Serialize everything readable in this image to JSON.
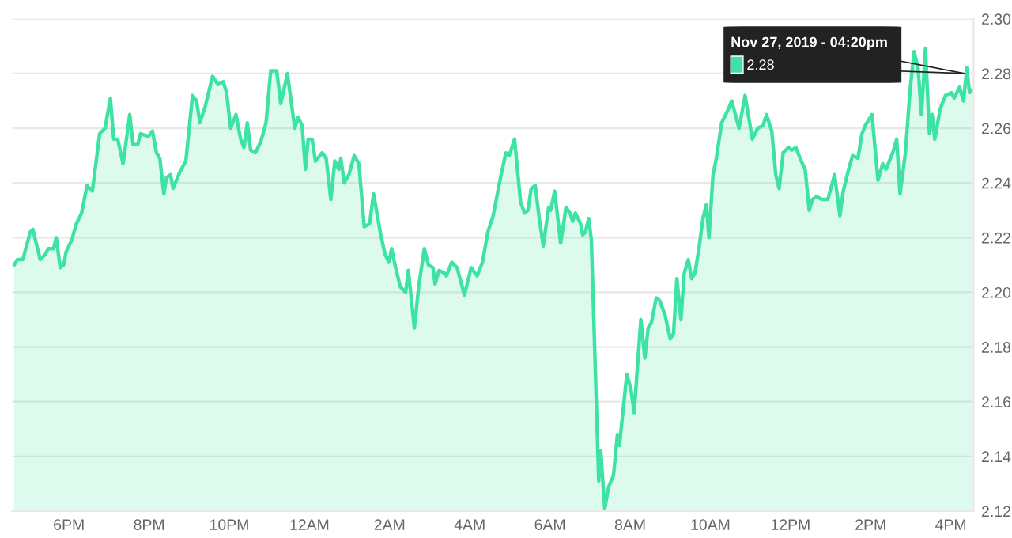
{
  "chart_data": {
    "type": "area",
    "x": [
      "2019-11-26T16:38",
      "2019-11-26T16:43",
      "2019-11-26T16:51",
      "2019-11-26T17:02",
      "2019-11-26T17:06",
      "2019-11-26T17:17",
      "2019-11-26T17:25",
      "2019-11-26T17:29",
      "2019-11-26T17:37",
      "2019-11-26T17:41",
      "2019-11-26T17:47",
      "2019-11-26T17:52",
      "2019-11-26T17:56",
      "2019-11-26T18:04",
      "2019-11-26T18:11",
      "2019-11-26T18:19",
      "2019-11-26T18:27",
      "2019-11-26T18:35",
      "2019-11-26T18:46",
      "2019-11-26T18:54",
      "2019-11-26T19:02",
      "2019-11-26T19:07",
      "2019-11-26T19:13",
      "2019-11-26T19:21",
      "2019-11-26T19:31",
      "2019-11-26T19:36",
      "2019-11-26T19:43",
      "2019-11-26T19:47",
      "2019-11-26T19:59",
      "2019-11-26T20:05",
      "2019-11-26T20:11",
      "2019-11-26T20:16",
      "2019-11-26T20:22",
      "2019-11-26T20:26",
      "2019-11-26T20:32",
      "2019-11-26T20:36",
      "2019-11-26T20:46",
      "2019-11-26T20:55",
      "2019-11-26T21:05",
      "2019-11-26T21:11",
      "2019-11-26T21:16",
      "2019-11-26T21:24",
      "2019-11-26T21:35",
      "2019-11-26T21:43",
      "2019-11-26T21:51",
      "2019-11-26T21:56",
      "2019-11-26T22:02",
      "2019-11-26T22:10",
      "2019-11-26T22:17",
      "2019-11-26T22:22",
      "2019-11-26T22:27",
      "2019-11-26T22:32",
      "2019-11-26T22:39",
      "2019-11-26T22:47",
      "2019-11-26T22:55",
      "2019-11-26T23:02",
      "2019-11-26T23:11",
      "2019-11-26T23:17",
      "2019-11-26T23:27",
      "2019-11-26T23:38",
      "2019-11-26T23:43",
      "2019-11-26T23:49",
      "2019-11-26T23:54",
      "2019-11-26T23:58",
      "2019-11-27T00:04",
      "2019-11-27T00:09",
      "2019-11-27T00:19",
      "2019-11-27T00:25",
      "2019-11-27T00:32",
      "2019-11-27T00:38",
      "2019-11-27T00:44",
      "2019-11-27T00:47",
      "2019-11-27T00:52",
      "2019-11-27T00:59",
      "2019-11-27T01:07",
      "2019-11-27T01:14",
      "2019-11-27T01:22",
      "2019-11-27T01:30",
      "2019-11-27T01:36",
      "2019-11-27T01:46",
      "2019-11-27T01:53",
      "2019-11-27T01:59",
      "2019-11-27T02:03",
      "2019-11-27T02:08",
      "2019-11-27T02:16",
      "2019-11-27T02:24",
      "2019-11-27T02:28",
      "2019-11-27T02:37",
      "2019-11-27T02:44",
      "2019-11-27T02:52",
      "2019-11-27T02:58",
      "2019-11-27T03:05",
      "2019-11-27T03:08",
      "2019-11-27T03:14",
      "2019-11-27T03:22",
      "2019-11-27T03:25",
      "2019-11-27T03:33",
      "2019-11-27T03:41",
      "2019-11-27T03:52",
      "2019-11-27T04:02",
      "2019-11-27T04:11",
      "2019-11-27T04:19",
      "2019-11-27T04:27",
      "2019-11-27T04:35",
      "2019-11-27T04:46",
      "2019-11-27T04:54",
      "2019-11-27T04:59",
      "2019-11-27T05:07",
      "2019-11-27T05:16",
      "2019-11-27T05:22",
      "2019-11-27T05:27",
      "2019-11-27T05:32",
      "2019-11-27T05:38",
      "2019-11-27T05:44",
      "2019-11-27T05:50",
      "2019-11-27T05:58",
      "2019-11-27T06:01",
      "2019-11-27T06:07",
      "2019-11-27T06:16",
      "2019-11-27T06:24",
      "2019-11-27T06:30",
      "2019-11-27T06:34",
      "2019-11-27T06:38",
      "2019-11-27T06:46",
      "2019-11-27T06:49",
      "2019-11-27T06:53",
      "2019-11-27T06:58",
      "2019-11-27T07:02",
      "2019-11-27T07:13",
      "2019-11-27T07:16",
      "2019-11-27T07:22",
      "2019-11-27T07:28",
      "2019-11-27T07:35",
      "2019-11-27T07:41",
      "2019-11-27T07:44",
      "2019-11-27T07:55",
      "2019-11-27T08:01",
      "2019-11-27T08:06",
      "2019-11-27T08:16",
      "2019-11-27T08:22",
      "2019-11-27T08:27",
      "2019-11-27T08:32",
      "2019-11-27T08:39",
      "2019-11-27T08:44",
      "2019-11-27T08:52",
      "2019-11-27T09:00",
      "2019-11-27T09:05",
      "2019-11-27T09:10",
      "2019-11-27T09:16",
      "2019-11-27T09:21",
      "2019-11-27T09:27",
      "2019-11-27T09:32",
      "2019-11-27T09:37",
      "2019-11-27T09:43",
      "2019-11-27T09:49",
      "2019-11-27T09:54",
      "2019-11-27T09:58",
      "2019-11-27T10:04",
      "2019-11-27T10:09",
      "2019-11-27T10:17",
      "2019-11-27T10:27",
      "2019-11-27T10:32",
      "2019-11-27T10:43",
      "2019-11-27T10:52",
      "2019-11-27T11:03",
      "2019-11-27T11:11",
      "2019-11-27T11:19",
      "2019-11-27T11:24",
      "2019-11-27T11:32",
      "2019-11-27T11:38",
      "2019-11-27T11:43",
      "2019-11-27T11:49",
      "2019-11-27T11:57",
      "2019-11-27T12:02",
      "2019-11-27T12:08",
      "2019-11-27T12:16",
      "2019-11-27T12:22",
      "2019-11-27T12:28",
      "2019-11-27T12:33",
      "2019-11-27T12:39",
      "2019-11-27T12:47",
      "2019-11-27T12:56",
      "2019-11-27T13:06",
      "2019-11-27T13:14",
      "2019-11-27T13:19",
      "2019-11-27T13:27",
      "2019-11-27T13:33",
      "2019-11-27T13:41",
      "2019-11-27T13:47",
      "2019-11-27T13:52",
      "2019-11-27T14:02",
      "2019-11-27T14:11",
      "2019-11-27T14:18",
      "2019-11-27T14:23",
      "2019-11-27T14:33",
      "2019-11-27T14:39",
      "2019-11-27T14:44",
      "2019-11-27T14:52",
      "2019-11-27T14:59",
      "2019-11-27T15:05",
      "2019-11-27T15:11",
      "2019-11-27T15:16",
      "2019-11-27T15:22",
      "2019-11-27T15:28",
      "2019-11-27T15:32",
      "2019-11-27T15:36",
      "2019-11-27T15:44",
      "2019-11-27T15:52",
      "2019-11-27T16:01",
      "2019-11-27T16:05",
      "2019-11-27T16:13",
      "2019-11-27T16:19",
      "2019-11-27T16:24",
      "2019-11-27T16:28",
      "2019-11-27T16:32"
    ],
    "series": [
      {
        "color": "#3ee3a3",
        "values": [
          2.21,
          2.212,
          2.212,
          2.222,
          2.223,
          2.212,
          2.214,
          2.216,
          2.216,
          2.22,
          2.209,
          2.21,
          2.215,
          2.219,
          2.225,
          2.229,
          2.239,
          2.237,
          2.258,
          2.26,
          2.271,
          2.256,
          2.256,
          2.247,
          2.265,
          2.254,
          2.254,
          2.258,
          2.257,
          2.259,
          2.251,
          2.249,
          2.236,
          2.242,
          2.243,
          2.238,
          2.244,
          2.248,
          2.272,
          2.27,
          2.262,
          2.268,
          2.279,
          2.276,
          2.277,
          2.273,
          2.26,
          2.265,
          2.256,
          2.253,
          2.262,
          2.252,
          2.251,
          2.255,
          2.262,
          2.281,
          2.281,
          2.269,
          2.28,
          2.26,
          2.264,
          2.261,
          2.245,
          2.256,
          2.256,
          2.248,
          2.251,
          2.249,
          2.234,
          2.248,
          2.245,
          2.249,
          2.24,
          2.243,
          2.25,
          2.247,
          2.224,
          2.225,
          2.236,
          2.222,
          2.214,
          2.211,
          2.216,
          2.21,
          2.202,
          2.2,
          2.208,
          2.187,
          2.203,
          2.216,
          2.21,
          2.209,
          2.203,
          2.208,
          2.207,
          2.206,
          2.211,
          2.209,
          2.199,
          2.209,
          2.206,
          2.211,
          2.222,
          2.228,
          2.242,
          2.251,
          2.25,
          2.256,
          2.233,
          2.229,
          2.23,
          2.238,
          2.239,
          2.227,
          2.217,
          2.231,
          2.23,
          2.237,
          2.218,
          2.231,
          2.229,
          2.226,
          2.229,
          2.225,
          2.221,
          2.222,
          2.227,
          2.219,
          2.131,
          2.142,
          2.121,
          2.129,
          2.133,
          2.148,
          2.144,
          2.17,
          2.165,
          2.156,
          2.19,
          2.176,
          2.187,
          2.189,
          2.198,
          2.197,
          2.192,
          2.183,
          2.185,
          2.205,
          2.19,
          2.207,
          2.212,
          2.205,
          2.207,
          2.216,
          2.227,
          2.232,
          2.22,
          2.243,
          2.249,
          2.262,
          2.267,
          2.27,
          2.26,
          2.272,
          2.256,
          2.26,
          2.261,
          2.265,
          2.259,
          2.243,
          2.238,
          2.251,
          2.253,
          2.252,
          2.253,
          2.248,
          2.245,
          2.23,
          2.234,
          2.235,
          2.234,
          2.234,
          2.243,
          2.228,
          2.237,
          2.245,
          2.25,
          2.249,
          2.258,
          2.261,
          2.265,
          2.241,
          2.247,
          2.245,
          2.251,
          2.256,
          2.236,
          2.251,
          2.274,
          2.288,
          2.282,
          2.265,
          2.289,
          2.258,
          2.265,
          2.256,
          2.267,
          2.272,
          2.273,
          2.271,
          2.275,
          2.27,
          2.282,
          2.273,
          2.274
        ]
      }
    ],
    "xlim": [
      "2019-11-26T16:35",
      "2019-11-27T16:34"
    ],
    "xticks": [
      {
        "value": "2019-11-26T18:00",
        "label": "6PM"
      },
      {
        "value": "2019-11-26T20:00",
        "label": "8PM"
      },
      {
        "value": "2019-11-26T22:00",
        "label": "10PM"
      },
      {
        "value": "2019-11-27T00:00",
        "label": "12AM"
      },
      {
        "value": "2019-11-27T02:00",
        "label": "2AM"
      },
      {
        "value": "2019-11-27T04:00",
        "label": "4AM"
      },
      {
        "value": "2019-11-27T06:00",
        "label": "6AM"
      },
      {
        "value": "2019-11-27T08:00",
        "label": "8AM"
      },
      {
        "value": "2019-11-27T10:00",
        "label": "10AM"
      },
      {
        "value": "2019-11-27T12:00",
        "label": "12PM"
      },
      {
        "value": "2019-11-27T14:00",
        "label": "2PM"
      },
      {
        "value": "2019-11-27T16:00",
        "label": "4PM"
      }
    ],
    "ylim": [
      2.12,
      2.3
    ],
    "yticks": [
      2.12,
      2.14,
      2.16,
      2.18,
      {
        "value": 2.2,
        "label": "2.20"
      },
      2.22,
      2.24,
      2.26,
      2.28,
      {
        "value": 2.3,
        "label": "2.30"
      }
    ],
    "grid": "y",
    "annotations": [
      {
        "text": "Nov 27, 2019 - 04:20pm",
        "x": "2019-11-27T16:20",
        "y": 2.28
      },
      {
        "text": "2.28",
        "x": "2019-11-27T16:20",
        "y": 2.28
      }
    ]
  }
}
